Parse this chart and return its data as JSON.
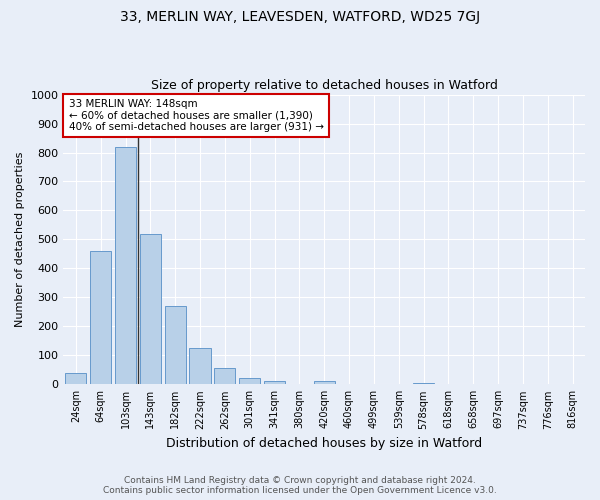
{
  "title": "33, MERLIN WAY, LEAVESDEN, WATFORD, WD25 7GJ",
  "subtitle": "Size of property relative to detached houses in Watford",
  "xlabel": "Distribution of detached houses by size in Watford",
  "ylabel": "Number of detached properties",
  "categories": [
    "24sqm",
    "64sqm",
    "103sqm",
    "143sqm",
    "182sqm",
    "222sqm",
    "262sqm",
    "301sqm",
    "341sqm",
    "380sqm",
    "420sqm",
    "460sqm",
    "499sqm",
    "539sqm",
    "578sqm",
    "618sqm",
    "658sqm",
    "697sqm",
    "737sqm",
    "776sqm",
    "816sqm"
  ],
  "values": [
    40,
    460,
    820,
    520,
    270,
    125,
    55,
    22,
    10,
    0,
    12,
    0,
    0,
    0,
    6,
    0,
    0,
    0,
    0,
    0,
    0
  ],
  "bar_color": "#b8d0e8",
  "bar_edge_color": "#6699cc",
  "vline_color": "#333333",
  "annotation_box_edge": "#cc0000",
  "property_label": "33 MERLIN WAY: 148sqm",
  "annotation_line1": "← 60% of detached houses are smaller (1,390)",
  "annotation_line2": "40% of semi-detached houses are larger (931) →",
  "ylim": [
    0,
    1000
  ],
  "background_color": "#e8eef8",
  "plot_background": "#e8eef8",
  "grid_color": "#ffffff",
  "footer_line1": "Contains HM Land Registry data © Crown copyright and database right 2024.",
  "footer_line2": "Contains public sector information licensed under the Open Government Licence v3.0.",
  "title_fontsize": 10,
  "subtitle_fontsize": 9,
  "ylabel_fontsize": 8,
  "xlabel_fontsize": 9,
  "tick_fontsize": 7,
  "footer_fontsize": 6.5
}
